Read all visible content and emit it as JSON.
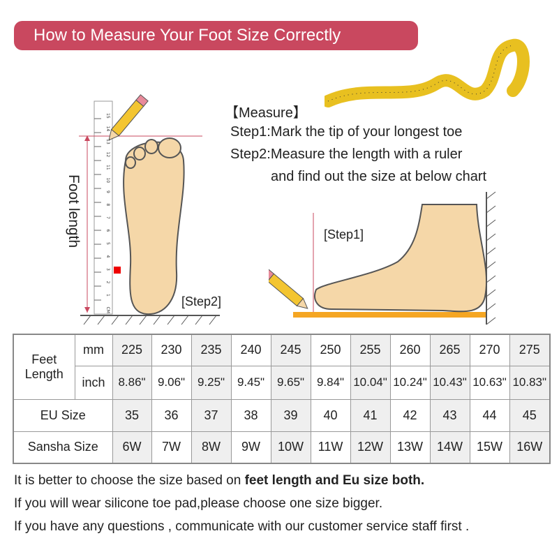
{
  "banner": {
    "title": "How to Measure Your Foot Size Correctly",
    "color": "#c9485f"
  },
  "instructions": {
    "heading": "【Measure】",
    "step1": "Step1:Mark the tip of your longest toe",
    "step2a": "Step2:Measure the length with a ruler",
    "step2b": "and find out the size at below chart"
  },
  "illustration": {
    "foot_length_label": "Foot length",
    "step2_label": "[Step2]",
    "step1_label": "[Step1]",
    "ruler_numbers": [
      "15",
      "14",
      "13",
      "12",
      "11",
      "10",
      "9",
      "8",
      "7",
      "6",
      "5",
      "4",
      "3",
      "2",
      "1",
      "CM"
    ]
  },
  "table": {
    "feet_length_label": "Feet Length",
    "mm_label": "mm",
    "inch_label": "inch",
    "eu_label": "EU Size",
    "sansha_label": "Sansha Size",
    "mm": [
      "225",
      "230",
      "235",
      "240",
      "245",
      "250",
      "255",
      "260",
      "265",
      "270",
      "275"
    ],
    "inch": [
      "8.86\"",
      "9.06\"",
      "9.25\"",
      "9.45\"",
      "9.65\"",
      "9.84\"",
      "10.04\"",
      "10.24\"",
      "10.43\"",
      "10.63\"",
      "10.83\""
    ],
    "eu": [
      "35",
      "36",
      "37",
      "38",
      "39",
      "40",
      "41",
      "42",
      "43",
      "44",
      "45"
    ],
    "sansha": [
      "6W",
      "7W",
      "8W",
      "9W",
      "10W",
      "11W",
      "12W",
      "13W",
      "14W",
      "15W",
      "16W"
    ]
  },
  "notes": {
    "line1_prefix": "It is better to choose the size based on ",
    "line1_bold": "feet length and Eu size both.",
    "line2": "If you will wear silicone toe pad,please choose one size bigger.",
    "line3": "If you have any questions , communicate with our customer service staff first ."
  }
}
